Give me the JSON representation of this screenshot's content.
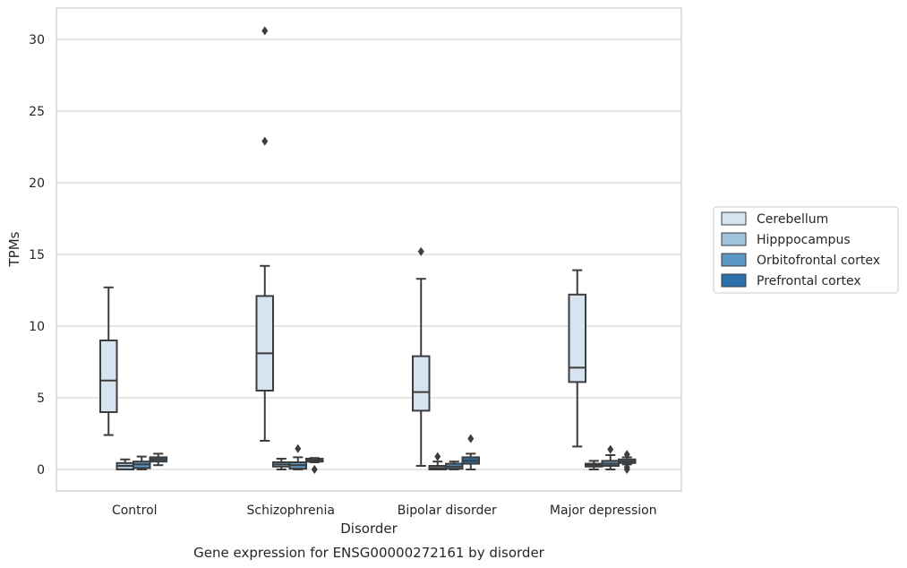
{
  "chart_data": {
    "type": "box",
    "title": "Gene expression for ENSG00000272161 by disorder",
    "xlabel": "Disorder",
    "ylabel": "TPMs",
    "ylim": [
      -1.5,
      32.2
    ],
    "yticks": [
      0,
      5,
      10,
      15,
      20,
      25,
      30
    ],
    "grid": true,
    "legend_position": "right",
    "categories": [
      "Control",
      "Schizophrenia",
      "Bipolar disorder",
      "Major depression"
    ],
    "series": [
      {
        "name": "Cerebellum",
        "color": "#d6e3f0",
        "boxes": [
          {
            "whisker_low": 2.4,
            "q1": 4.0,
            "median": 6.2,
            "q3": 9.0,
            "whisker_high": 12.7,
            "outliers": []
          },
          {
            "whisker_low": 2.0,
            "q1": 5.5,
            "median": 8.1,
            "q3": 12.1,
            "whisker_high": 14.2,
            "outliers": [
              22.9,
              30.6
            ]
          },
          {
            "whisker_low": 0.25,
            "q1": 4.1,
            "median": 5.4,
            "q3": 7.9,
            "whisker_high": 13.3,
            "outliers": [
              15.2
            ]
          },
          {
            "whisker_low": 1.6,
            "q1": 6.1,
            "median": 7.1,
            "q3": 12.2,
            "whisker_high": 13.9,
            "outliers": []
          }
        ]
      },
      {
        "name": "Hipppocampus",
        "color": "#9ec3db",
        "boxes": [
          {
            "whisker_low": 0.0,
            "q1": 0.0,
            "median": 0.25,
            "q3": 0.45,
            "whisker_high": 0.7,
            "outliers": []
          },
          {
            "whisker_low": 0.0,
            "q1": 0.2,
            "median": 0.35,
            "q3": 0.5,
            "whisker_high": 0.75,
            "outliers": []
          },
          {
            "whisker_low": 0.0,
            "q1": 0.0,
            "median": 0.1,
            "q3": 0.25,
            "whisker_high": 0.55,
            "outliers": [
              0.9
            ]
          },
          {
            "whisker_low": 0.0,
            "q1": 0.2,
            "median": 0.3,
            "q3": 0.4,
            "whisker_high": 0.6,
            "outliers": []
          }
        ]
      },
      {
        "name": "Orbitofrontal cortex",
        "color": "#5a97c4",
        "boxes": [
          {
            "whisker_low": 0.0,
            "q1": 0.1,
            "median": 0.35,
            "q3": 0.55,
            "whisker_high": 0.9,
            "outliers": []
          },
          {
            "whisker_low": 0.0,
            "q1": 0.05,
            "median": 0.3,
            "q3": 0.5,
            "whisker_high": 0.85,
            "outliers": [
              1.45
            ]
          },
          {
            "whisker_low": 0.0,
            "q1": 0.05,
            "median": 0.2,
            "q3": 0.4,
            "whisker_high": 0.55,
            "outliers": []
          },
          {
            "whisker_low": 0.0,
            "q1": 0.25,
            "median": 0.4,
            "q3": 0.6,
            "whisker_high": 1.0,
            "outliers": [
              1.4
            ]
          }
        ]
      },
      {
        "name": "Prefrontal cortex",
        "color": "#2a6fa9",
        "boxes": [
          {
            "whisker_low": 0.3,
            "q1": 0.55,
            "median": 0.7,
            "q3": 0.85,
            "whisker_high": 1.1,
            "outliers": []
          },
          {
            "whisker_low": 0.5,
            "q1": 0.55,
            "median": 0.65,
            "q3": 0.75,
            "whisker_high": 0.8,
            "outliers": [
              0.0
            ]
          },
          {
            "whisker_low": 0.0,
            "q1": 0.4,
            "median": 0.6,
            "q3": 0.85,
            "whisker_high": 1.1,
            "outliers": [
              2.15
            ]
          },
          {
            "whisker_low": 0.35,
            "q1": 0.45,
            "median": 0.55,
            "q3": 0.7,
            "whisker_high": 0.85,
            "outliers": [
              0.0,
              0.15,
              1.05
            ]
          }
        ]
      }
    ]
  }
}
